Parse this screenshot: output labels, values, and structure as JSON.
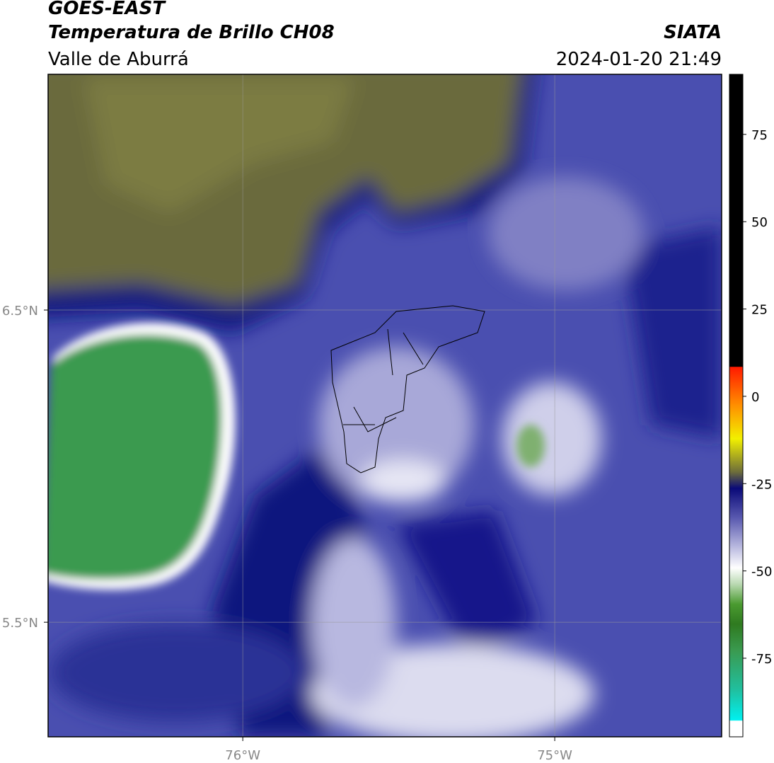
{
  "header": {
    "title": "GOES-EAST",
    "subtitle": "Temperatura de Brillo CH08",
    "region": "Valle de Aburrá",
    "source": "SIATA",
    "datetime": "2024-01-20 21:49"
  },
  "map": {
    "xlim": [
      -76.624,
      -74.465
    ],
    "ylim": [
      5.133,
      7.255
    ],
    "lat_ticks": [
      {
        "value": 6.5,
        "label": "6.5°N"
      },
      {
        "value": 5.5,
        "label": "5.5°N"
      }
    ],
    "lon_ticks": [
      {
        "value": -76,
        "label": "76°W"
      },
      {
        "value": -75,
        "label": "75°W"
      }
    ]
  },
  "colorbar": {
    "lim": [
      -97.5,
      92.2
    ],
    "ticks": [
      75,
      50,
      25,
      0,
      -25,
      -50,
      -75
    ]
  }
}
